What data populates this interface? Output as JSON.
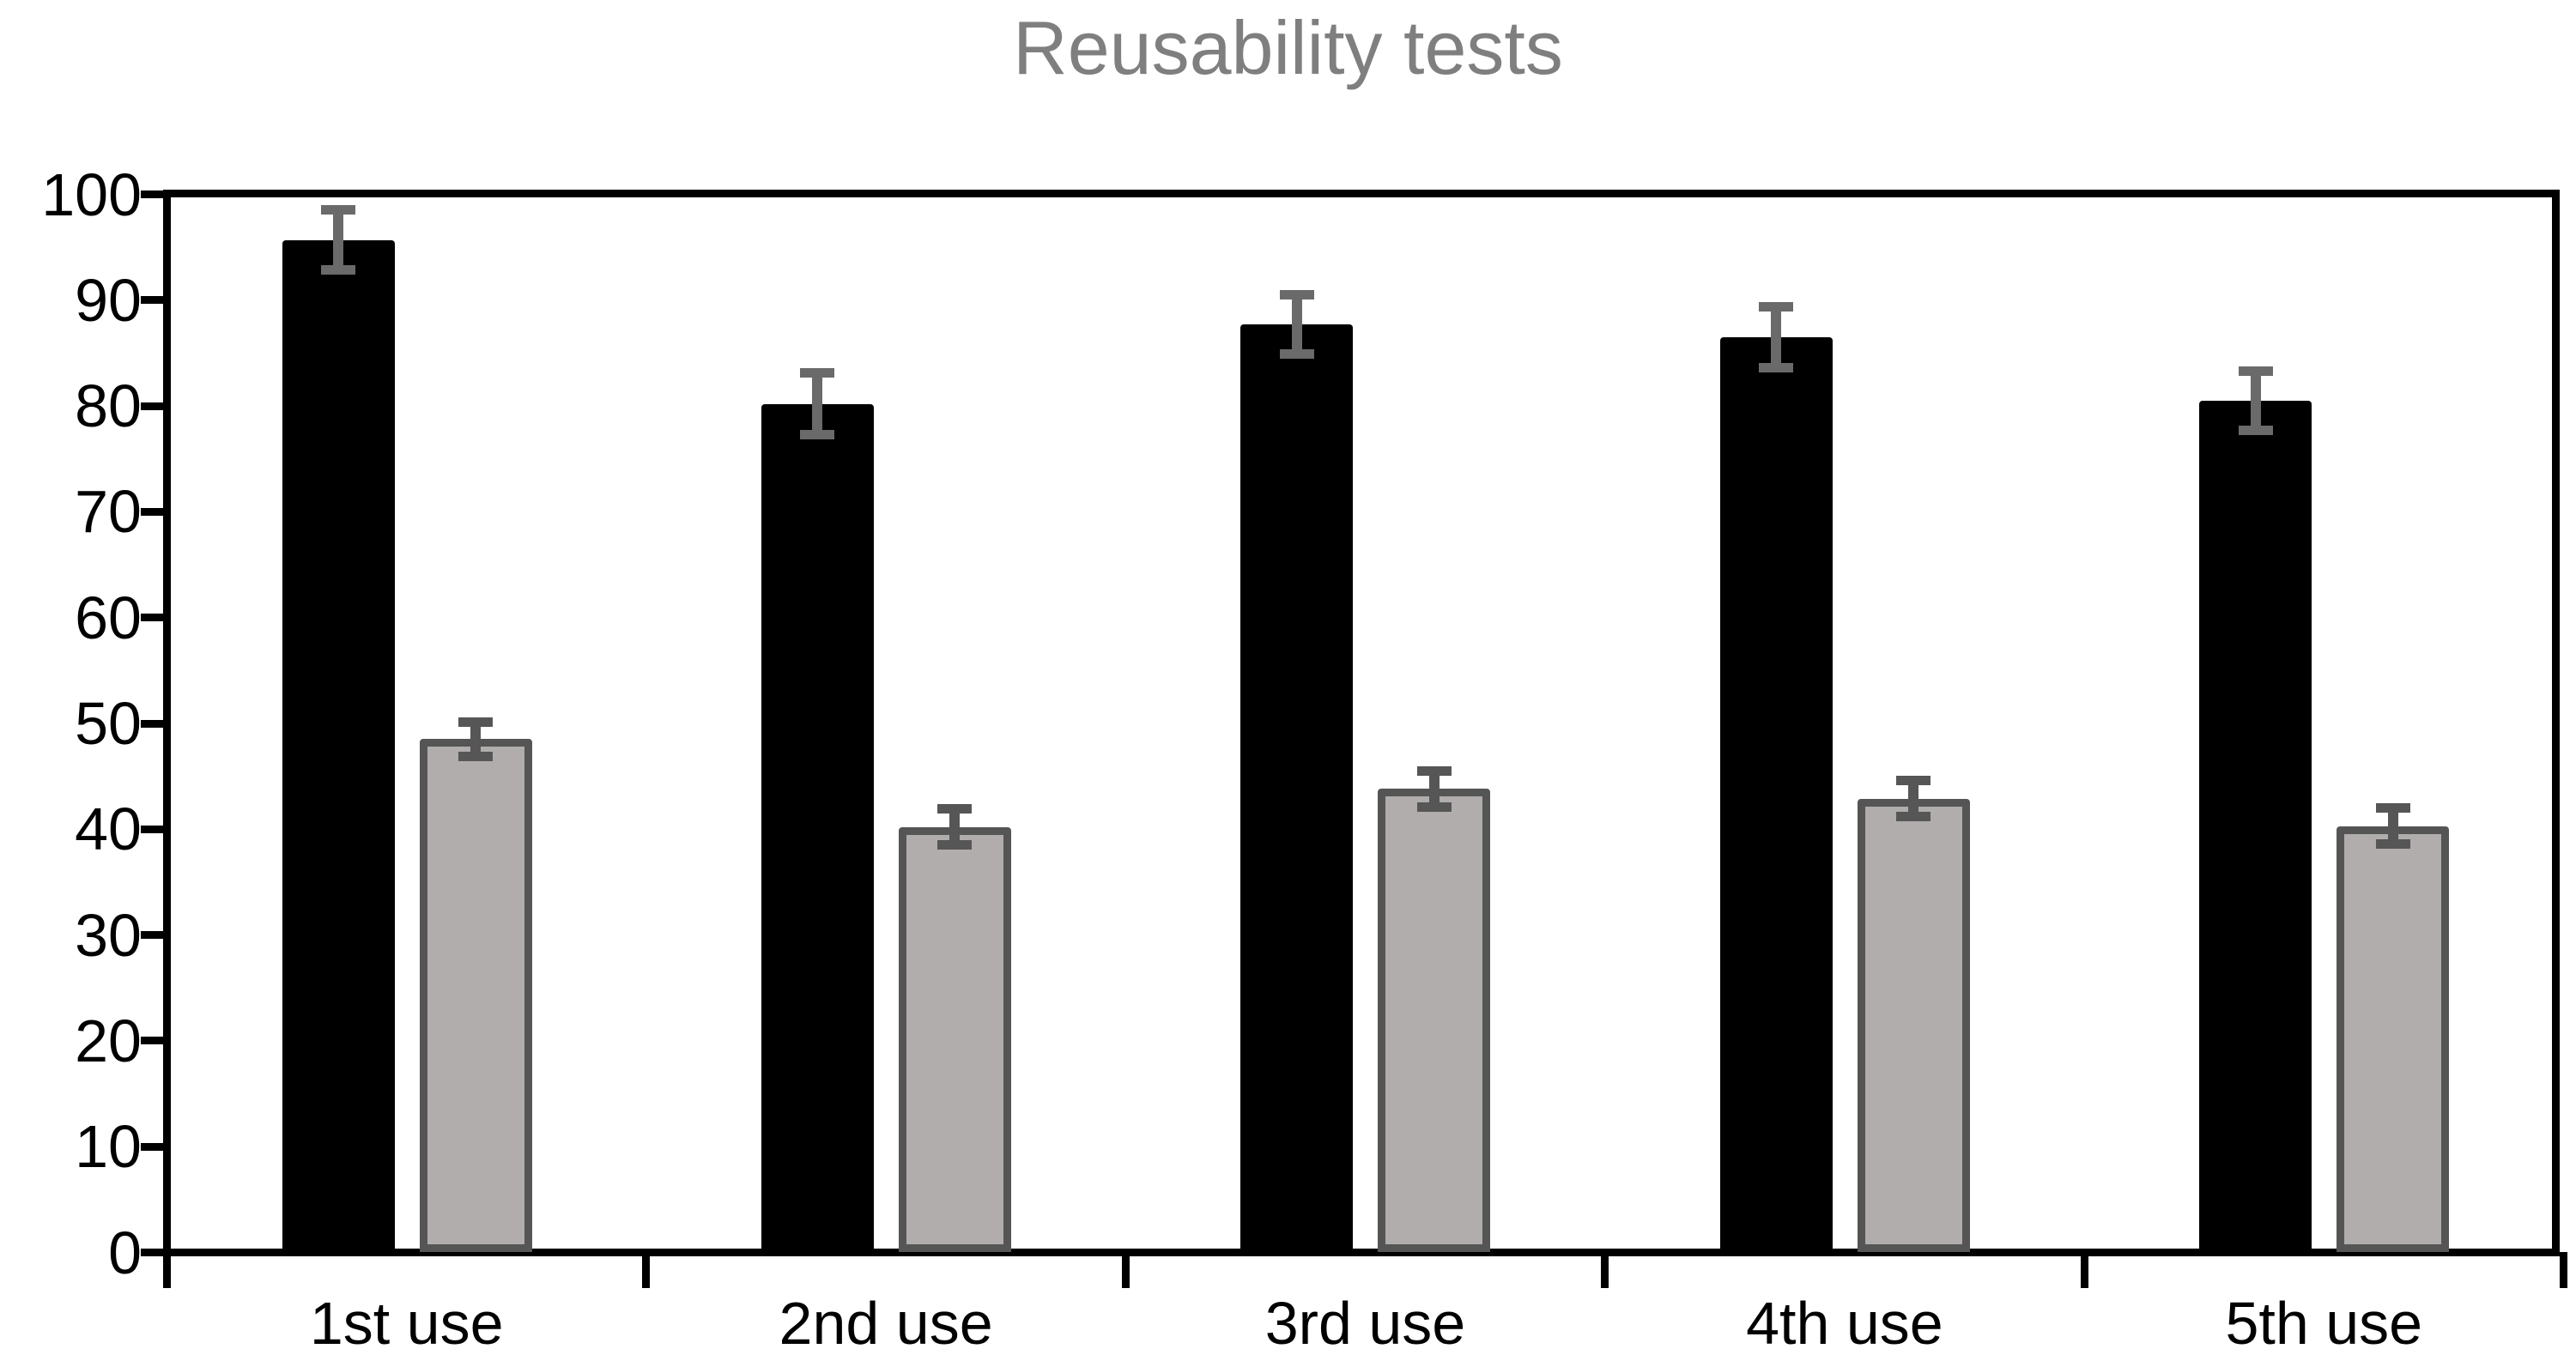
{
  "title": "Reusability tests",
  "colors": {
    "title_text": "#7f7f7f",
    "axis": "#000000",
    "black_series_fill": "#000000",
    "gray_series_fill": "#b0adac",
    "gray_series_border": "#555555",
    "black_series_error": "#6a6a6a",
    "gray_series_error": "#565656",
    "background": "#ffffff"
  },
  "chart_data": {
    "type": "bar",
    "title": "Reusability tests",
    "categories": [
      "1st use",
      "2nd use",
      "3rd use",
      "4th use",
      "5th use"
    ],
    "series": [
      {
        "name": "black",
        "values": [
          95.7,
          80.2,
          87.7,
          86.5,
          80.5
        ],
        "errors": [
          2.8,
          2.9,
          2.8,
          2.9,
          2.8
        ],
        "fill": "#000000",
        "border": "none",
        "error_color": "#6a6a6a"
      },
      {
        "name": "gray",
        "values": [
          48.5,
          40.2,
          43.8,
          42.9,
          40.3
        ],
        "errors": [
          1.6,
          1.7,
          1.7,
          1.7,
          1.7
        ],
        "fill": "#b0adac",
        "border": "#555555",
        "error_color": "#565656"
      }
    ],
    "ylabel": "",
    "xlabel": "",
    "ylim": [
      0,
      100
    ],
    "yticks": [
      0,
      10,
      20,
      30,
      40,
      50,
      60,
      70,
      80,
      90,
      100
    ],
    "grid": false,
    "legend_position": "none",
    "plot_border": true,
    "error_bars": true
  }
}
